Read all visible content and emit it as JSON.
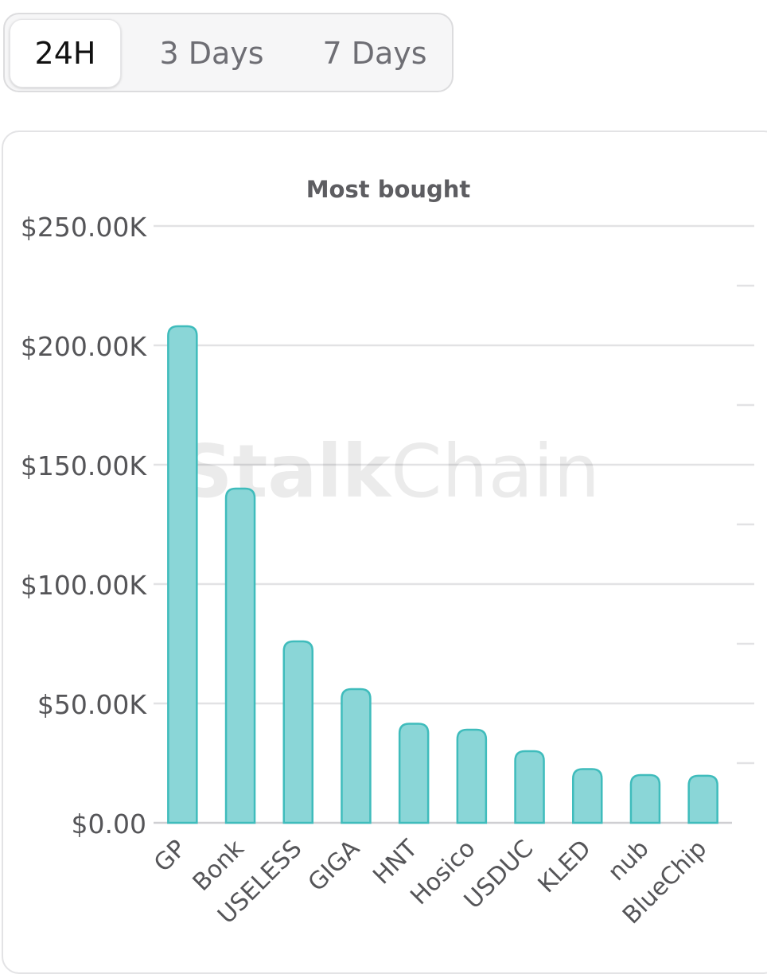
{
  "tabs": [
    {
      "label": "24H",
      "active": true
    },
    {
      "label": "3 Days",
      "active": false
    },
    {
      "label": "7 Days",
      "active": false
    }
  ],
  "watermark": {
    "bold": "Stalk",
    "light": "Chain"
  },
  "colors": {
    "bar_fill": "#8ad6d7",
    "bar_stroke": "#3fbcbc",
    "grid": "#e2e2e4"
  },
  "chart_data": {
    "type": "bar",
    "title": "Most bought",
    "categories": [
      "GP",
      "Bonk",
      "USELESS",
      "GIGA",
      "HNT",
      "Hosico",
      "USDUC",
      "KLED",
      "nub",
      "BlueChip"
    ],
    "values": [
      208000,
      140000,
      76000,
      56000,
      41500,
      39000,
      30000,
      22500,
      20000,
      19700
    ],
    "ylim": [
      0,
      250000
    ],
    "yticks": [
      0,
      50000,
      100000,
      150000,
      200000,
      250000
    ],
    "ytick_labels": [
      "$0.00",
      "$50.00K",
      "$100.00K",
      "$150.00K",
      "$200.00K",
      "$250.00K"
    ],
    "grid": true,
    "xlabel": "",
    "ylabel": ""
  }
}
